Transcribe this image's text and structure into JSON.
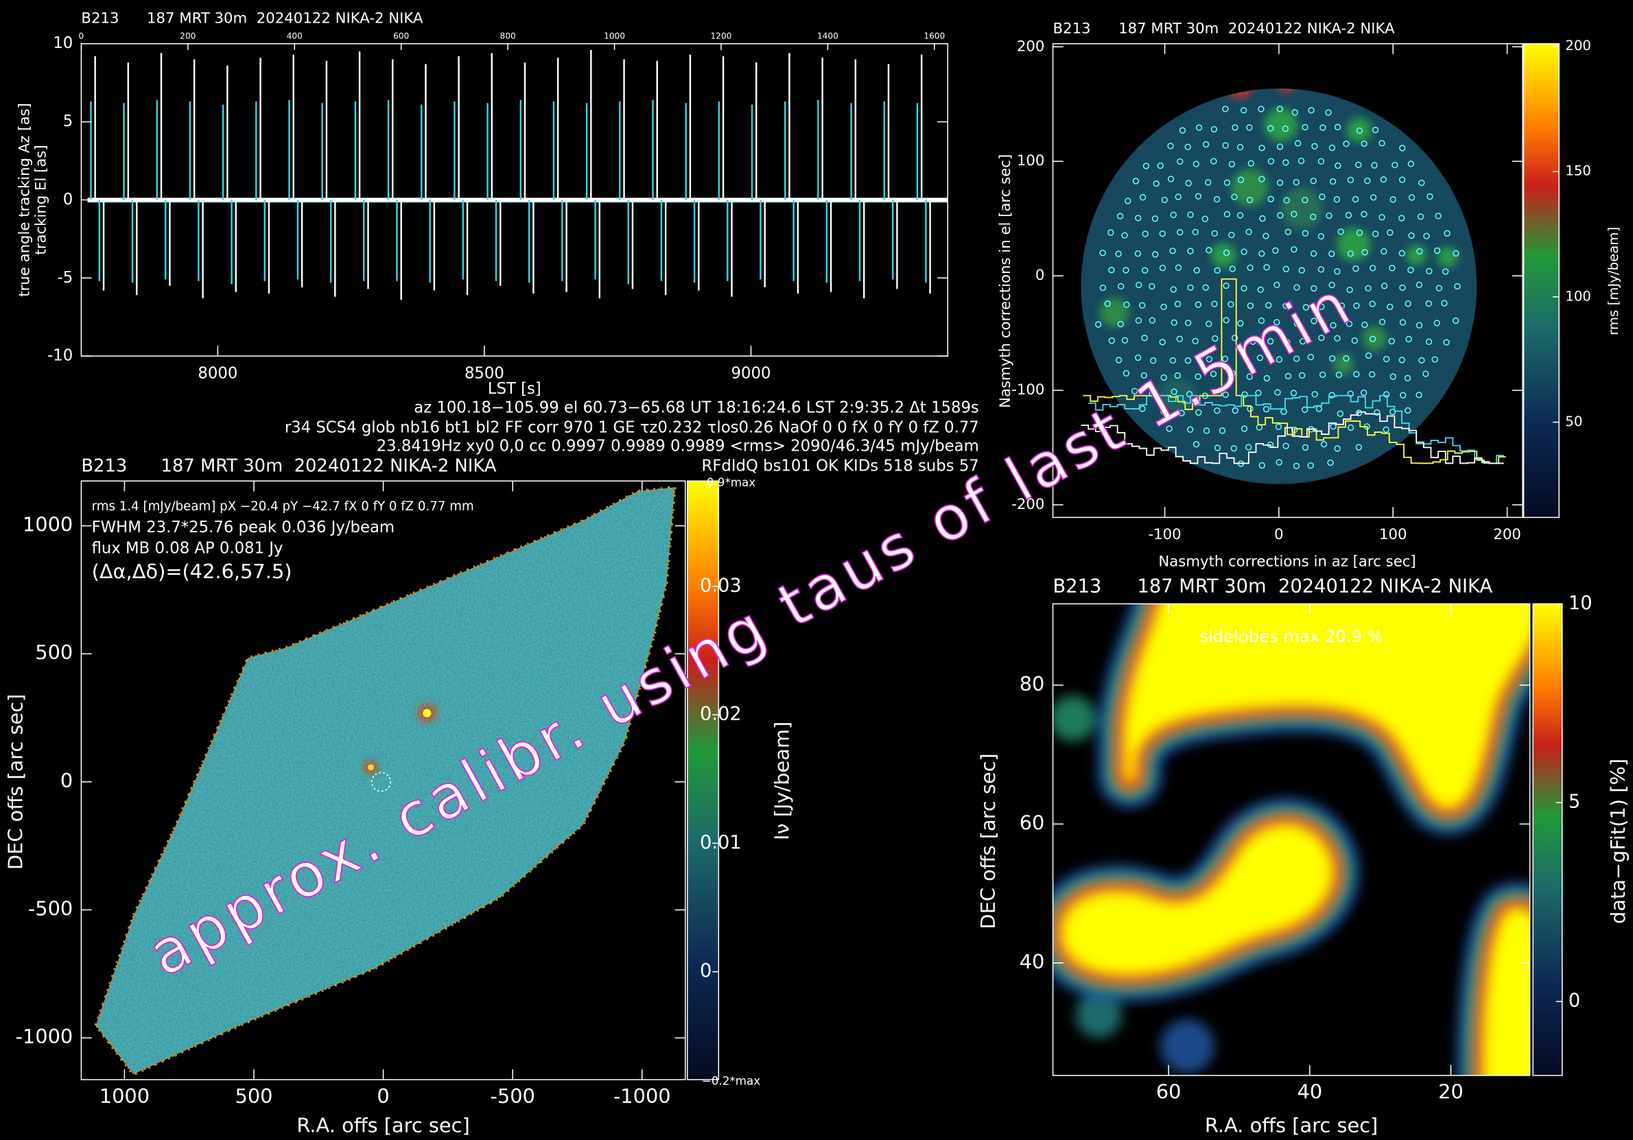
{
  "chart_data": [
    {
      "type": "stem",
      "title": "B213      187 MRT 30m  20240122 NIKA-2 NIKA",
      "xlabel": "LST [s]",
      "xlim": [
        7744,
        9369
      ],
      "xticks": [
        8000,
        8500,
        9000
      ],
      "x2lim": [
        0,
        1625
      ],
      "x2ticks": [
        0,
        200,
        400,
        600,
        800,
        1000,
        1200,
        1400,
        1600
      ],
      "ylim": [
        -10,
        10
      ],
      "yticks": [
        -10,
        -5,
        0,
        5,
        10
      ],
      "series": [
        {
          "name": "true angle tracking Az [as]",
          "color": "#33d6e0",
          "x": [
            7762,
            7778,
            7824,
            7840,
            7886,
            7902,
            7948,
            7964,
            8010,
            8026,
            8072,
            8088,
            8134,
            8150,
            8196,
            8212,
            8258,
            8274,
            8320,
            8336,
            8382,
            8398,
            8444,
            8460,
            8506,
            8522,
            8568,
            8584,
            8630,
            8646,
            8692,
            8708,
            8754,
            8770,
            8816,
            8832,
            8878,
            8894,
            8940,
            8956,
            9002,
            9018,
            9064,
            9080,
            9126,
            9142,
            9188,
            9204,
            9250,
            9266,
            9312,
            9328
          ],
          "values": [
            6.3,
            -5.2,
            6.2,
            -5.3,
            6.4,
            -5.1,
            6.3,
            -5.2,
            6.1,
            -5.4,
            6.3,
            -5.2,
            6.4,
            -5.1,
            6.2,
            -5.3,
            6.3,
            -5.2,
            6.4,
            -5.2,
            6.1,
            -5.3,
            6.3,
            -5.1,
            6.2,
            -5.2,
            6.4,
            -5.3,
            6.3,
            -5.2,
            6.2,
            -5.1,
            6.3,
            -5.4,
            6.4,
            -5.2,
            6.2,
            -5.3,
            6.3,
            -5.2,
            6.1,
            -5.1,
            6.3,
            -5.2,
            6.4,
            -5.3,
            6.2,
            -5.2,
            6.3,
            -5.1,
            6.2,
            -5.3
          ]
        },
        {
          "name": "tracking El [as]",
          "color": "#ffffff",
          "x": [
            7770,
            7786,
            7832,
            7848,
            7894,
            7910,
            7956,
            7972,
            8018,
            8034,
            8080,
            8096,
            8142,
            8158,
            8204,
            8220,
            8266,
            8282,
            8328,
            8344,
            8390,
            8406,
            8452,
            8468,
            8514,
            8530,
            8576,
            8592,
            8638,
            8654,
            8700,
            8716,
            8762,
            8778,
            8824,
            8840,
            8886,
            8902,
            8948,
            8964,
            9010,
            9026,
            9072,
            9088,
            9134,
            9150,
            9196,
            9212,
            9258,
            9274,
            9320,
            9336
          ],
          "values": [
            9.2,
            -5.8,
            8.8,
            -6.1,
            9.4,
            -5.5,
            9.0,
            -6.3,
            8.6,
            -5.9,
            9.1,
            -6.0,
            9.3,
            -5.6,
            8.9,
            -6.2,
            9.5,
            -5.7,
            9.0,
            -6.4,
            8.7,
            -5.8,
            9.2,
            -6.1,
            9.4,
            -5.5,
            8.8,
            -6.0,
            9.1,
            -5.9,
            9.6,
            -6.3,
            9.0,
            -5.7,
            8.9,
            -6.1,
            9.3,
            -5.8,
            9.2,
            -6.2,
            8.8,
            -5.6,
            9.4,
            -6.0,
            9.1,
            -5.9,
            9.0,
            -6.3,
            8.7,
            -5.7,
            9.3,
            -6.0
          ]
        }
      ]
    },
    {
      "type": "heatmap",
      "title": "B213      187 MRT 30m  20240122 NIKA-2 NIKA",
      "xlabel": "Nasmyth corrections in az [arc sec]",
      "ylabel": "Nasmyth corrections in el [arc sec]",
      "xlim": [
        -198,
        213.5
      ],
      "xticks": [
        -100,
        0,
        100,
        200
      ],
      "ylim": [
        -211,
        202.7
      ],
      "yticks": [
        -200,
        -100,
        0,
        100,
        200
      ],
      "colorbar": {
        "label": "rms [mJy/beam]",
        "lim": [
          12,
          201
        ],
        "ticks": [
          50,
          100,
          150,
          200
        ]
      }
    },
    {
      "type": "heatmap",
      "title": "B213      187 MRT 30m  20240122 NIKA-2 NIKA",
      "xlabel": "R.A. offs [arc sec]",
      "ylabel": "DEC offs [arc sec]",
      "xlim": [
        1167,
        -1167
      ],
      "xticks": [
        1000,
        500,
        0,
        -500,
        -1000
      ],
      "ylim": [
        -1163,
        1175
      ],
      "yticks": [
        -1000,
        -500,
        0,
        500,
        1000
      ],
      "colorbar": {
        "label": "Iν [Jy/beam]",
        "lim": [
          -0.0084,
          0.0382
        ],
        "ticks": [
          0,
          0.01,
          0.02,
          0.03
        ],
        "top_label": "0.9*max",
        "bottom_label": "−0.2*max"
      },
      "annotations": [
        "rms 1.4 [mJy/beam] pX −20.4 pY −42.7 fX 0 fY 0 fZ 0.77 mm",
        "FWHM 23.7*25.76 peak 0.036 Jy/beam",
        "flux MB 0.08 AP 0.081 Jy",
        "(Δα,Δδ)=(42.6,57.5)"
      ]
    },
    {
      "type": "heatmap",
      "title": "B213      187 MRT 30m  20240122 NIKA-2 NIKA",
      "xlabel": "R.A. offs [arc sec]",
      "ylabel": "DEC offs [arc sec]",
      "xlim": [
        76.4,
        8.8
      ],
      "xticks": [
        60,
        40,
        20
      ],
      "ylim": [
        23.8,
        91.7
      ],
      "yticks": [
        40,
        60,
        80
      ],
      "colorbar": {
        "label": "data−gFit(1) [%]",
        "lim": [
          -1.86,
          10
        ],
        "ticks": [
          0,
          5,
          10
        ]
      },
      "annotations": [
        "sidelobes max 20.9 %"
      ]
    }
  ],
  "info": [
    "az 100.18−105.99 el 60.73−65.68 UT 18:16:24.6 LST 2:9:35.2 Δt 1589s",
    "r34 SCS4 glob nb16 bt1 bl2 FF corr 970 1 GE τz0.232 τlos0.26 NaOf 0 0 fX 0 fY 0 fZ 0.77",
    "23.8419Hz xy0 0,0 cc 0.9997 0.9989 0.9989 <rms> 2090/46.3/45 mJy/beam",
    "RFdIdQ bs101 OK KIDs 518 subs 57"
  ],
  "watermark": "approx. calibr. using taus of last 1.5min"
}
